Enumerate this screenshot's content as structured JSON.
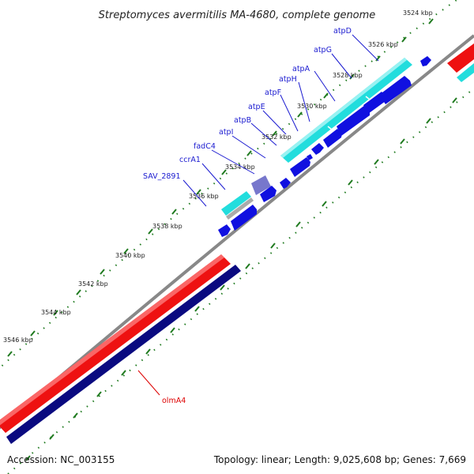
{
  "title": "Streptomyces avermitilis MA-4680, complete genome",
  "accession": "Accession: NC_003155",
  "summary": "Topology: linear; Length: 9,025,608 bp; Genes: 7,669",
  "colors": {
    "backbone": "#888888",
    "ticks": "#1f7a1f",
    "gene_forward": "#1010e0",
    "operon_cyan": "#22dddd",
    "gene_lavender": "#7777cc",
    "large_red": "#ee1111",
    "large_navy": "#0a0a80",
    "label_blue": "#1a1ad0",
    "label_red": "#dd0000"
  },
  "scale": {
    "labels": [
      "3524 kbp",
      "3526 kbp",
      "3528 kbp",
      "3530 kbp",
      "3532 kbp",
      "3534 kbp",
      "3536 kbp",
      "3538 kbp",
      "3540 kbp",
      "3542 kbp",
      "3544 kbp",
      "3546 kbp"
    ]
  },
  "genes": {
    "labels": [
      "atpD",
      "atpG",
      "atpA",
      "atpH",
      "atpF",
      "atpE",
      "atpB",
      "atpI",
      "fadC4",
      "ccrA1",
      "SAV_2891",
      "olmA4"
    ]
  }
}
